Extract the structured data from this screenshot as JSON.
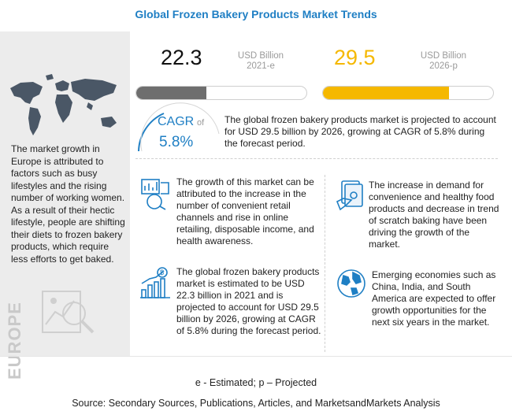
{
  "title": "Global Frozen Bakery Products Market Trends",
  "left_panel": {
    "description": "The market growth in Europe is attributed to factors such as busy lifestyles and the rising number of working women. As a result of their hectic lifestyle, people are shifting their diets to frozen bakery products, which require less efforts to get baked.",
    "region_label": "EUROPE",
    "map_icon": "world-map-icon"
  },
  "stats": {
    "value_2021": "22.3",
    "unit_2021": "USD Billion",
    "year_2021": "2021-e",
    "value_2026": "29.5",
    "unit_2026": "USD Billion",
    "year_2026": "2026-p",
    "bar_2021_fraction": 0.41,
    "bar_2026_fraction": 0.74,
    "colors": {
      "accent_blue": "#1f7fc4",
      "accent_yellow": "#f5b800",
      "bar_grey": "#6e6e6e"
    }
  },
  "cagr": {
    "label": "CAGR",
    "of": "of",
    "value": "5.8%",
    "text": "The global frozen bakery products market is projected to account for USD 29.5 billion by 2026, growing at CAGR of 5.8% during the forecast period."
  },
  "cards": [
    {
      "icon": "retail-chart-icon",
      "text": "The growth of this market can be attributed to the increase in the number of convenient retail channels and rise in online retailing, disposable income, and health awareness."
    },
    {
      "icon": "money-hand-icon",
      "text": "The increase in demand for convenience and healthy food products and decrease in trend of scratch baking have been driving the growth of the market."
    },
    {
      "icon": "dollar-bar-chart-icon",
      "text": "The global frozen bakery products market is estimated to be USD 22.3 billion in 2021 and is projected to account for USD 29.5 billion by 2026, growing at CAGR of 5.8% during the forecast period."
    },
    {
      "icon": "globe-icon",
      "text": "Emerging economies such as China, India, and South America are expected to offer growth opportunities for the next six years in the market."
    }
  ],
  "footnote": "e - Estimated; p – Projected",
  "source": "Source: Secondary Sources, Publications, Articles, and MarketsandMarkets Analysis"
}
